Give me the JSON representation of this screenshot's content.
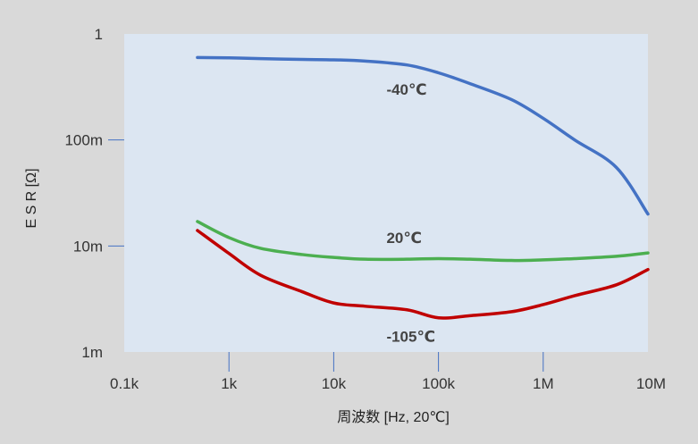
{
  "chart_data": {
    "type": "line",
    "x_scale": "log",
    "y_scale": "log",
    "xlabel": "周波数 [Hz, 20℃]",
    "ylabel": "E S R  [Ω]",
    "xlim": [
      100,
      10000000
    ],
    "ylim": [
      0.001,
      1
    ],
    "x_ticks": [
      {
        "value": 100,
        "label": "0.1k"
      },
      {
        "value": 1000,
        "label": "1k"
      },
      {
        "value": 10000,
        "label": "10k"
      },
      {
        "value": 100000,
        "label": "100k"
      },
      {
        "value": 1000000,
        "label": "1M"
      },
      {
        "value": 10000000,
        "label": "10M"
      }
    ],
    "y_ticks": [
      {
        "value": 1,
        "label": "1"
      },
      {
        "value": 0.1,
        "label": "100m"
      },
      {
        "value": 0.01,
        "label": "10m"
      },
      {
        "value": 0.001,
        "label": "1m"
      }
    ],
    "grid": false,
    "plot_background": "#dce6f2",
    "series": [
      {
        "name": "-40℃",
        "color": "#4472c4",
        "x": [
          500,
          1000,
          2000,
          5000,
          10000,
          20000,
          50000,
          100000,
          200000,
          500000,
          1000000,
          2000000,
          5000000,
          10000000
        ],
        "y": [
          0.6,
          0.595,
          0.585,
          0.575,
          0.57,
          0.555,
          0.51,
          0.43,
          0.34,
          0.24,
          0.16,
          0.1,
          0.055,
          0.02
        ]
      },
      {
        "name": "20℃",
        "color": "#4caf50",
        "x": [
          500,
          1000,
          2000,
          5000,
          10000,
          20000,
          50000,
          100000,
          200000,
          500000,
          1000000,
          2000000,
          5000000,
          10000000
        ],
        "y": [
          0.017,
          0.012,
          0.0095,
          0.0083,
          0.0078,
          0.0075,
          0.0075,
          0.0076,
          0.0075,
          0.0073,
          0.0074,
          0.0076,
          0.008,
          0.0086
        ]
      },
      {
        "name": "-105℃",
        "color": "#c00000",
        "x": [
          500,
          1000,
          2000,
          5000,
          10000,
          20000,
          50000,
          100000,
          200000,
          500000,
          1000000,
          2000000,
          5000000,
          10000000
        ],
        "y": [
          0.014,
          0.0085,
          0.0053,
          0.0037,
          0.0029,
          0.0027,
          0.0025,
          0.0021,
          0.0022,
          0.0024,
          0.0028,
          0.0034,
          0.0043,
          0.006
        ]
      }
    ],
    "annotations": [
      {
        "text": "-40℃",
        "series": "-40℃",
        "x": 70000,
        "y": 0.3
      },
      {
        "text": "20℃",
        "series": "20℃",
        "x": 70000,
        "y": 0.012
      },
      {
        "text": "-105℃",
        "series": "-105℃",
        "x": 70000,
        "y": 0.0014
      }
    ]
  }
}
